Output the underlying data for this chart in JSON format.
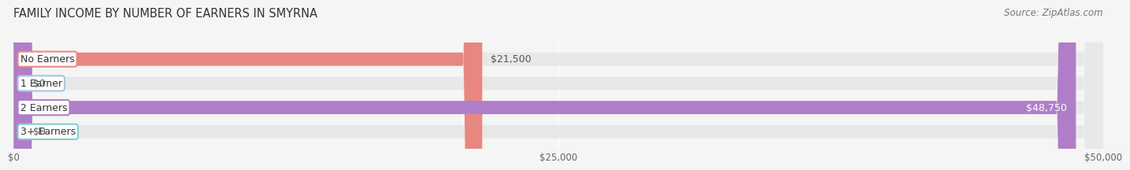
{
  "title": "FAMILY INCOME BY NUMBER OF EARNERS IN SMYRNA",
  "source": "Source: ZipAtlas.com",
  "categories": [
    "No Earners",
    "1 Earner",
    "2 Earners",
    "3+ Earners"
  ],
  "values": [
    21500,
    0,
    48750,
    0
  ],
  "bar_colors": [
    "#e8877f",
    "#a8c4e0",
    "#b07ec8",
    "#7ecece"
  ],
  "xlim": [
    0,
    50000
  ],
  "xticks": [
    0,
    25000,
    50000
  ],
  "xtick_labels": [
    "$0",
    "$25,000",
    "$50,000"
  ],
  "background_color": "#f5f5f5",
  "bar_bg_color": "#e8e8e8",
  "bar_height": 0.55,
  "title_fontsize": 10.5,
  "source_fontsize": 8.5,
  "label_fontsize": 9,
  "tick_fontsize": 8.5,
  "rounding_size": 0.018
}
